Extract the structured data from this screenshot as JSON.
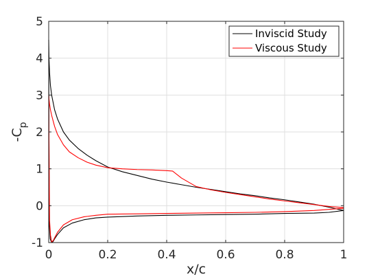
{
  "chart_data": {
    "type": "line",
    "title": "",
    "xlabel": "x/c",
    "ylabel": {
      "main": "-C",
      "sub": "p"
    },
    "xlim": [
      0,
      1
    ],
    "ylim": [
      -1,
      5
    ],
    "xticks": [
      0,
      0.2,
      0.4,
      0.6,
      0.8,
      1
    ],
    "xtick_labels": [
      "0",
      "0.2",
      "0.4",
      "0.6",
      "0.8",
      "1"
    ],
    "yticks": [
      -1,
      0,
      1,
      2,
      3,
      4,
      5
    ],
    "ytick_labels": [
      "-1",
      "0",
      "1",
      "2",
      "3",
      "4",
      "5"
    ],
    "grid": true,
    "legend_position": "top-right",
    "series": [
      {
        "name": "Inviscid Study",
        "color": "#000000",
        "upper": {
          "x": [
            0,
            0.001,
            0.003,
            0.006,
            0.01,
            0.02,
            0.03,
            0.05,
            0.07,
            0.1,
            0.13,
            0.16,
            0.2,
            0.25,
            0.3,
            0.35,
            0.4,
            0.45,
            0.5,
            0.55,
            0.6,
            0.65,
            0.7,
            0.75,
            0.8,
            0.85,
            0.9,
            0.95,
            1.0
          ],
          "y": [
            4.5,
            4.0,
            3.6,
            3.25,
            3.0,
            2.6,
            2.35,
            2.0,
            1.78,
            1.55,
            1.37,
            1.22,
            1.05,
            0.92,
            0.82,
            0.72,
            0.64,
            0.57,
            0.5,
            0.44,
            0.38,
            0.32,
            0.27,
            0.21,
            0.16,
            0.1,
            0.04,
            -0.04,
            -0.13
          ]
        },
        "lower": {
          "x": [
            0,
            0.002,
            0.005,
            0.01,
            0.015,
            0.02,
            0.03,
            0.05,
            0.08,
            0.12,
            0.16,
            0.2,
            0.3,
            0.4,
            0.5,
            0.6,
            0.7,
            0.8,
            0.9,
            0.95,
            1.0
          ],
          "y": [
            4.5,
            -0.5,
            -0.9,
            -1.0,
            -0.97,
            -0.9,
            -0.78,
            -0.6,
            -0.47,
            -0.38,
            -0.33,
            -0.31,
            -0.28,
            -0.26,
            -0.25,
            -0.24,
            -0.23,
            -0.21,
            -0.2,
            -0.18,
            -0.13
          ]
        }
      },
      {
        "name": "Viscous Study",
        "color": "#ff0000",
        "upper": {
          "x": [
            0,
            0.001,
            0.003,
            0.006,
            0.01,
            0.02,
            0.03,
            0.05,
            0.07,
            0.1,
            0.13,
            0.16,
            0.2,
            0.25,
            0.3,
            0.35,
            0.4,
            0.42,
            0.45,
            0.5,
            0.55,
            0.6,
            0.65,
            0.7,
            0.75,
            0.8,
            0.85,
            0.9,
            0.95,
            1.0
          ],
          "y": [
            3.0,
            2.9,
            2.75,
            2.6,
            2.45,
            2.15,
            1.93,
            1.65,
            1.46,
            1.3,
            1.18,
            1.1,
            1.03,
            1.0,
            0.98,
            0.97,
            0.95,
            0.94,
            0.75,
            0.52,
            0.43,
            0.36,
            0.3,
            0.24,
            0.18,
            0.13,
            0.08,
            0.03,
            -0.02,
            -0.05
          ]
        },
        "lower": {
          "x": [
            0,
            0.003,
            0.006,
            0.01,
            0.015,
            0.02,
            0.03,
            0.05,
            0.08,
            0.12,
            0.16,
            0.2,
            0.3,
            0.4,
            0.5,
            0.6,
            0.7,
            0.8,
            0.9,
            0.95,
            1.0
          ],
          "y": [
            3.0,
            -0.4,
            -0.8,
            -0.98,
            -0.95,
            -0.87,
            -0.72,
            -0.52,
            -0.38,
            -0.3,
            -0.26,
            -0.23,
            -0.22,
            -0.21,
            -0.2,
            -0.19,
            -0.18,
            -0.16,
            -0.13,
            -0.1,
            -0.07
          ]
        }
      }
    ]
  }
}
